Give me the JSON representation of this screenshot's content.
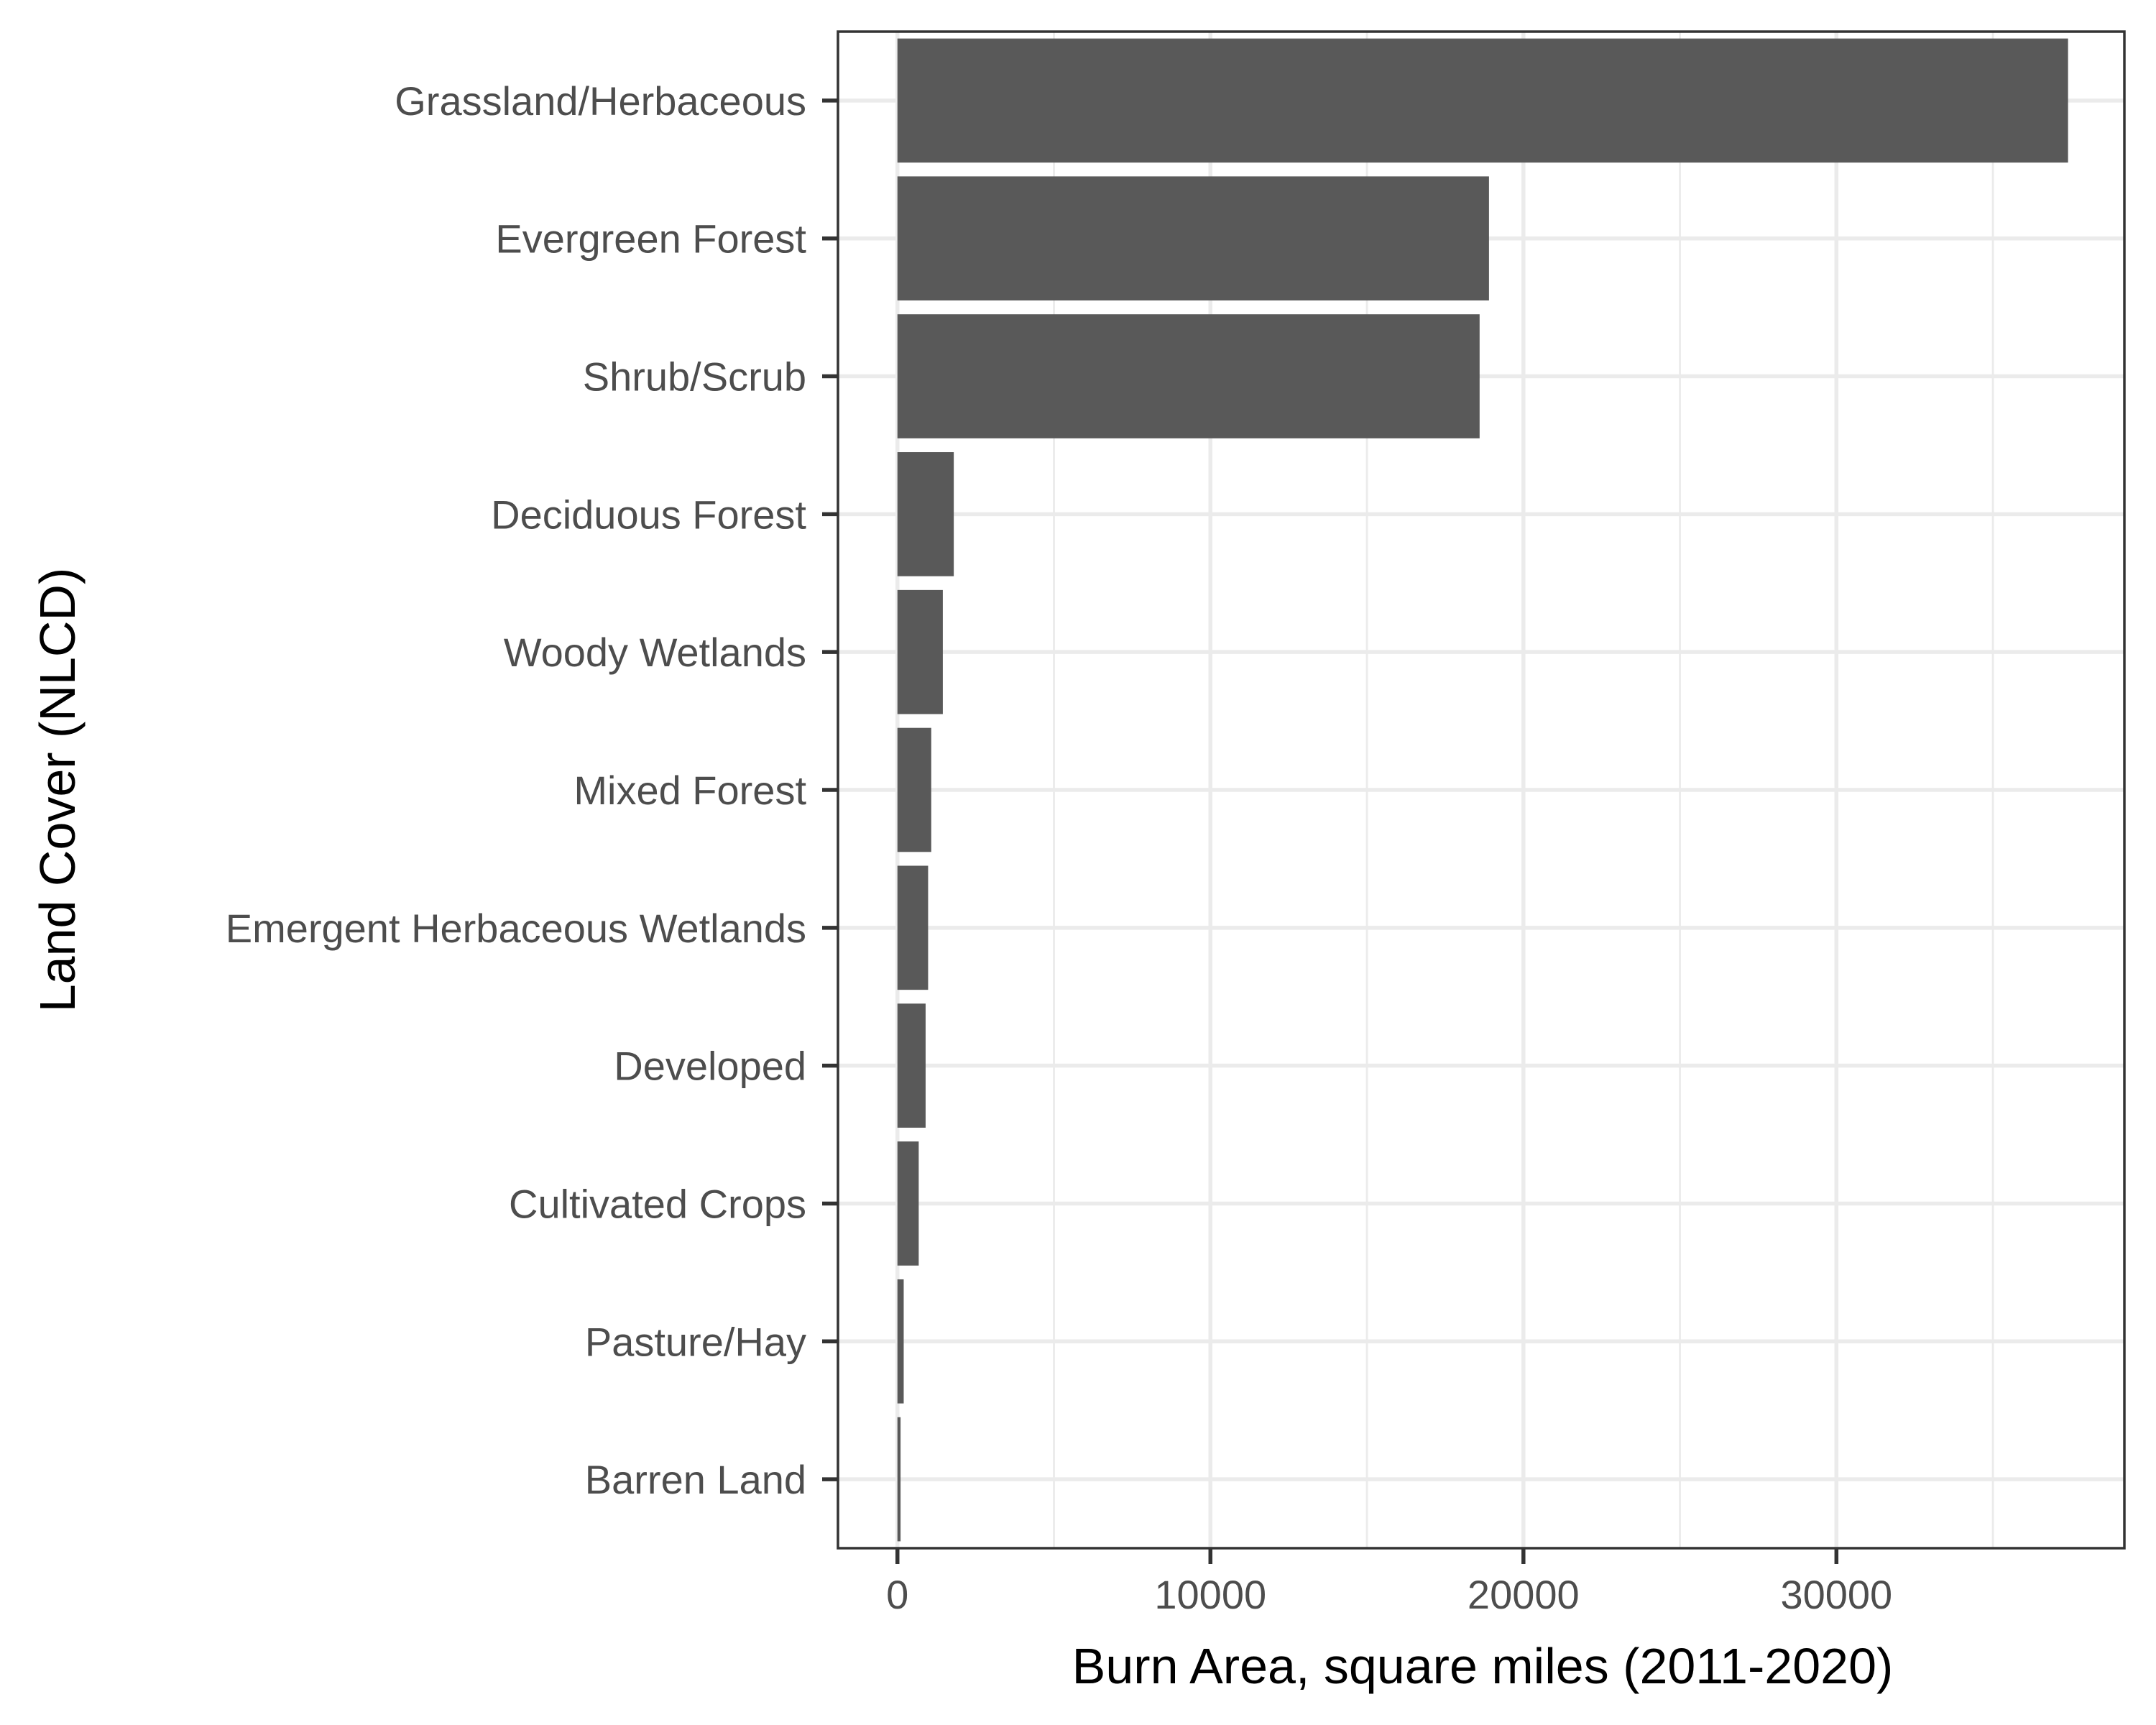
{
  "chart_data": {
    "type": "bar",
    "orientation": "horizontal",
    "xlabel": "Burn Area, square miles (2011-2020)",
    "ylabel": "Land Cover (NLCD)",
    "categories": [
      "Grassland/Herbaceous",
      "Evergreen Forest",
      "Shrub/Scrub",
      "Deciduous Forest",
      "Woody Wetlands",
      "Mixed Forest",
      "Emergent Herbaceous Wetlands",
      "Developed",
      "Cultivated Crops",
      "Pasture/Hay",
      "Barren Land"
    ],
    "values": [
      37400,
      18900,
      18600,
      1800,
      1450,
      1080,
      980,
      900,
      680,
      200,
      100
    ],
    "xlim": [
      -1900,
      39200
    ],
    "xticks": [
      0,
      10000,
      20000,
      30000
    ],
    "xtick_labels": [
      "0",
      "10000",
      "20000",
      "30000"
    ],
    "bar_color": "#595959",
    "grid": true,
    "theme": "bw"
  }
}
